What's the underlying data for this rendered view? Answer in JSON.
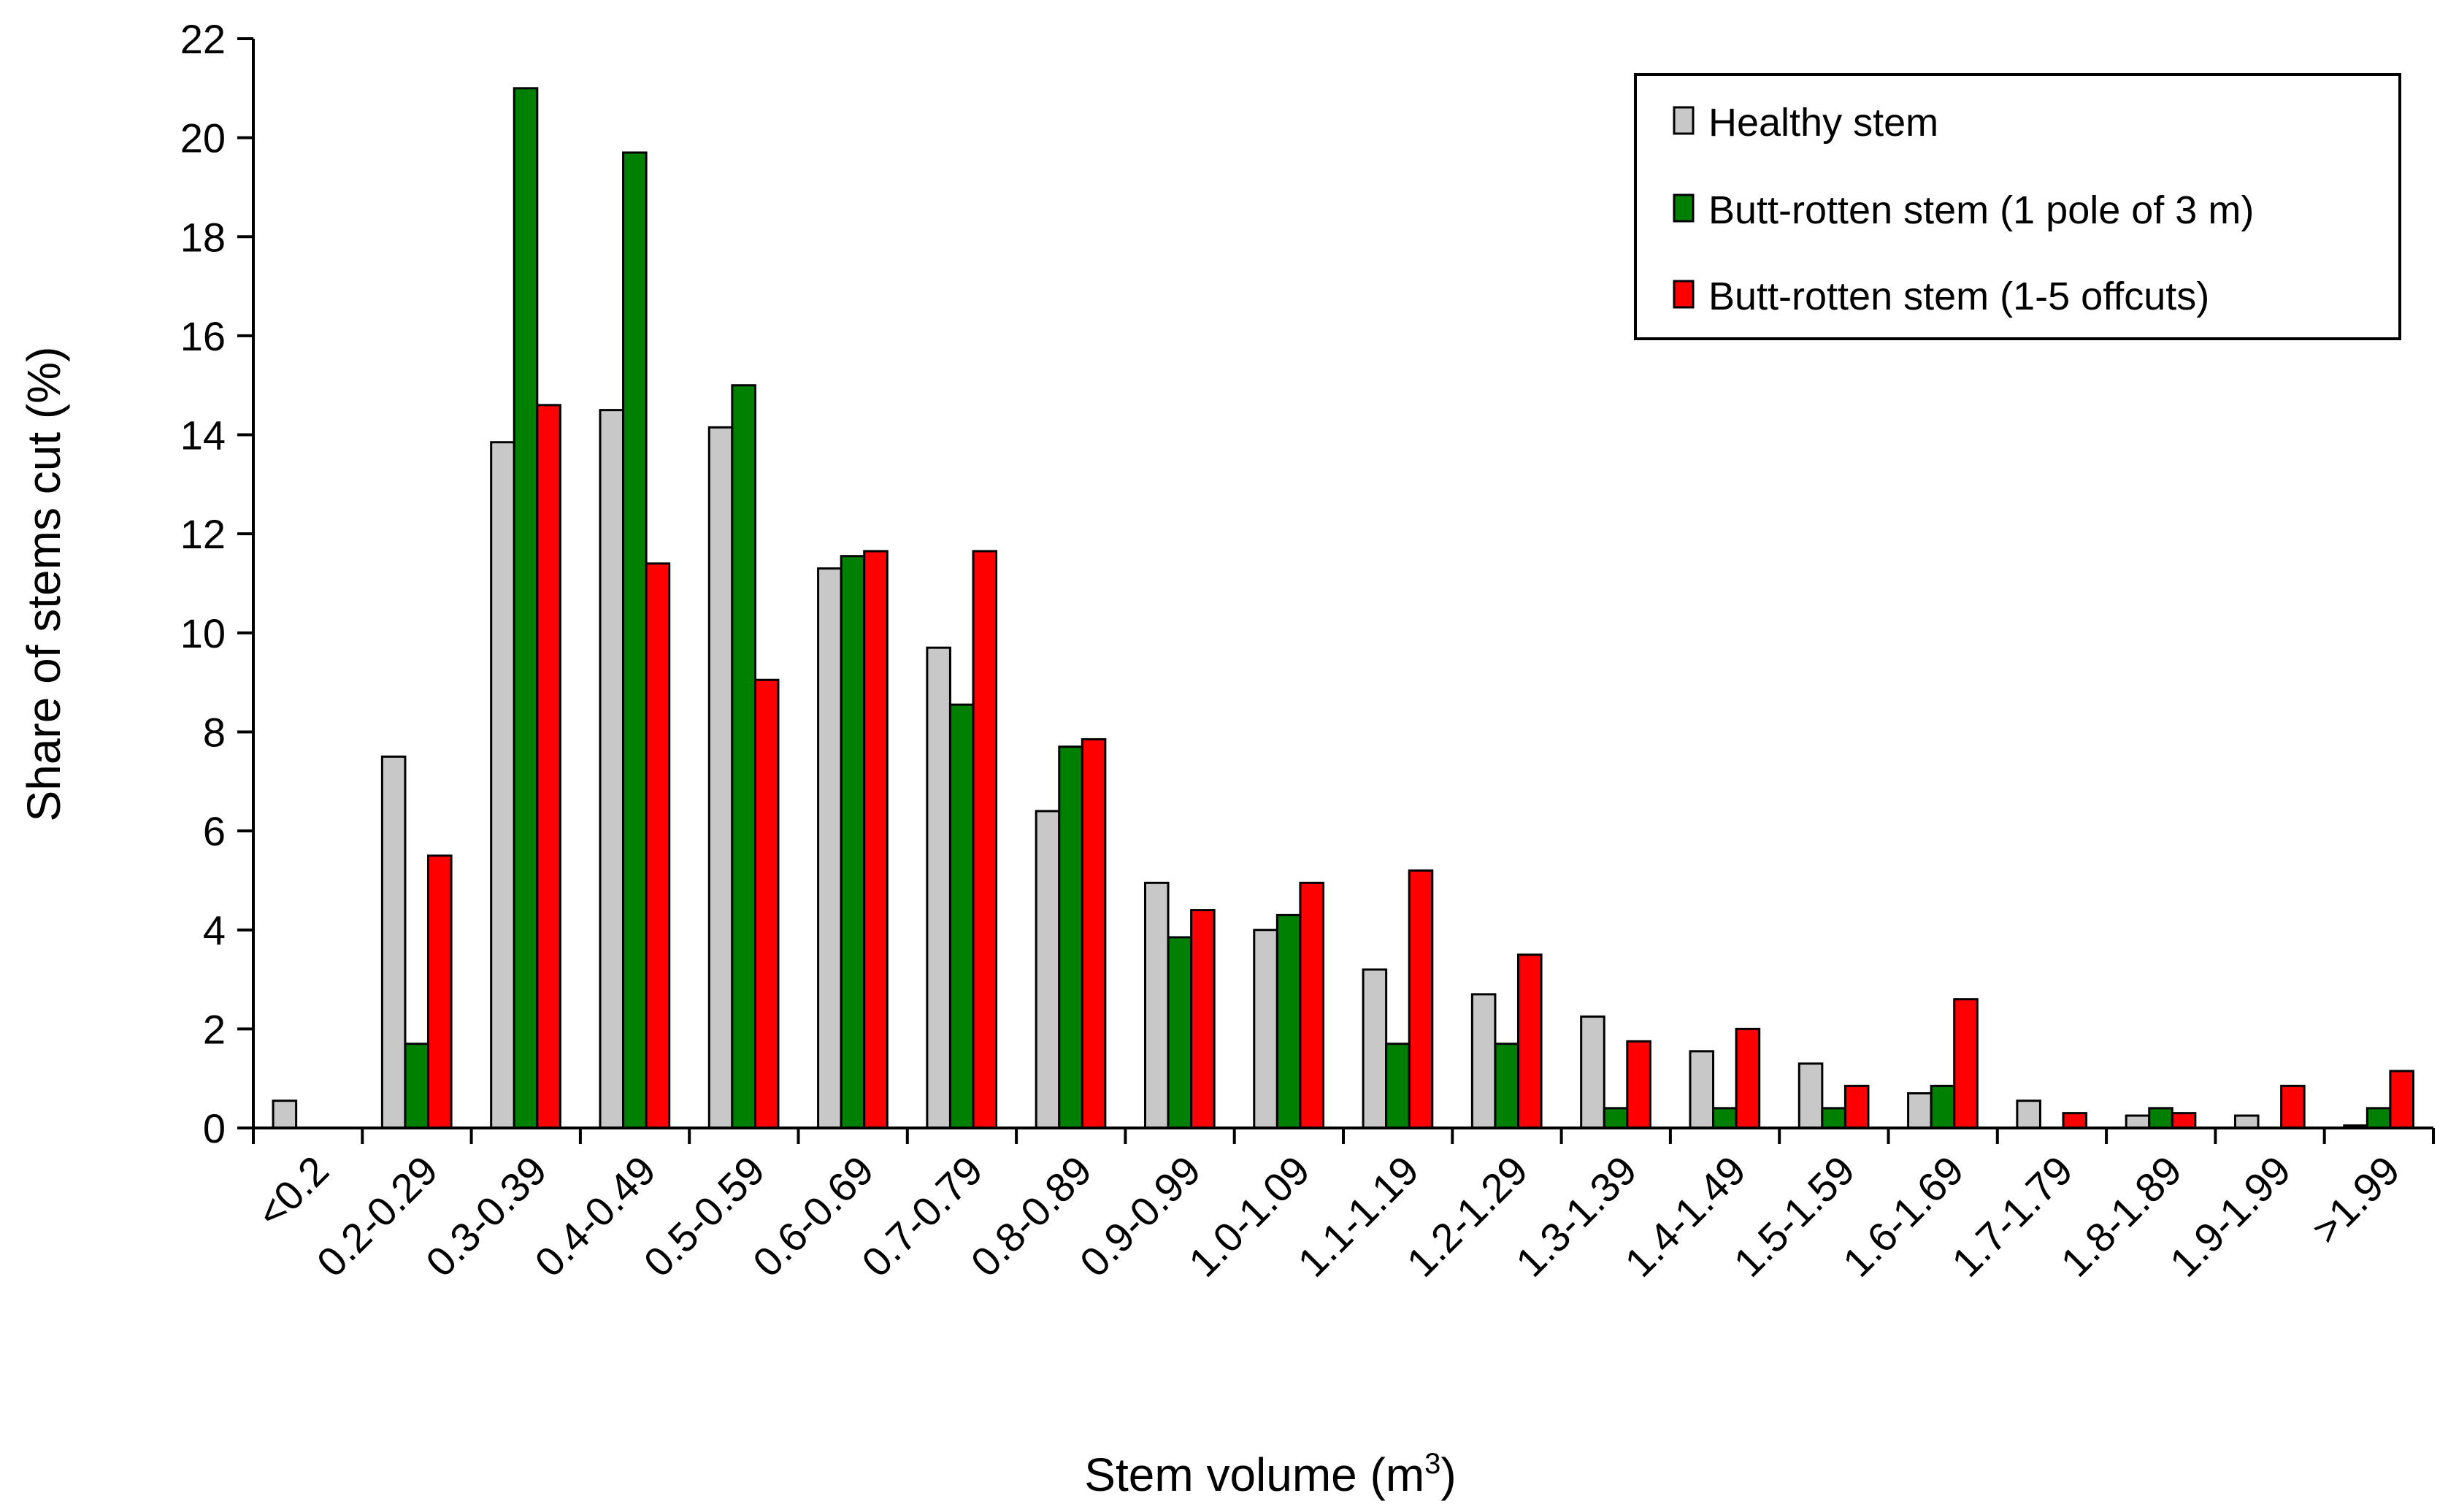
{
  "chart_data": {
    "type": "bar",
    "title": "",
    "xlabel": "Stem volume  (m",
    "xlabel_superscript": "3",
    "xlabel_suffix": ")",
    "ylabel": "Share of stems cut  (%)",
    "ylim": [
      0,
      22
    ],
    "yticks": [
      0,
      2,
      4,
      6,
      8,
      10,
      12,
      14,
      16,
      18,
      20,
      22
    ],
    "categories": [
      "<0.2",
      "0.2-0.29",
      "0.3-0.39",
      "0.4-0.49",
      "0.5-0.59",
      "0.6-0.69",
      "0.7-0.79",
      "0.8-0.89",
      "0.9-0.99",
      "1.0-1.09",
      "1.1-1.19",
      "1.2-1.29",
      "1.3-1.39",
      "1.4-1.49",
      "1.5-1.59",
      "1.6-1.69",
      "1.7-1.79",
      "1.8-1.89",
      "1.9-1.99",
      ">1.99"
    ],
    "series": [
      {
        "name": "Healthy stem",
        "color": "#c8c8c8",
        "values": [
          0.55,
          7.5,
          13.85,
          14.5,
          14.15,
          11.3,
          9.7,
          6.4,
          4.95,
          4.0,
          3.2,
          2.7,
          2.25,
          1.55,
          1.3,
          0.7,
          0.55,
          0.25,
          0.25,
          0.05
        ]
      },
      {
        "name": "Butt-rotten stem (1 pole of 3 m)",
        "color": "#008000",
        "values": [
          0,
          1.7,
          21.0,
          19.7,
          15.0,
          11.55,
          8.55,
          7.7,
          3.85,
          4.3,
          1.7,
          1.7,
          0.4,
          0.4,
          0.4,
          0.85,
          0,
          0.4,
          0,
          0.4
        ]
      },
      {
        "name": "Butt-rotten stem (1-5 offcuts)",
        "color": "#ff0000",
        "values": [
          0,
          5.5,
          14.6,
          11.4,
          9.05,
          11.65,
          11.65,
          7.85,
          4.4,
          4.95,
          5.2,
          3.5,
          1.75,
          2.0,
          0.85,
          2.6,
          0.3,
          0.3,
          0.85,
          1.15
        ]
      }
    ],
    "legend_position": "top-right",
    "grid": false
  }
}
